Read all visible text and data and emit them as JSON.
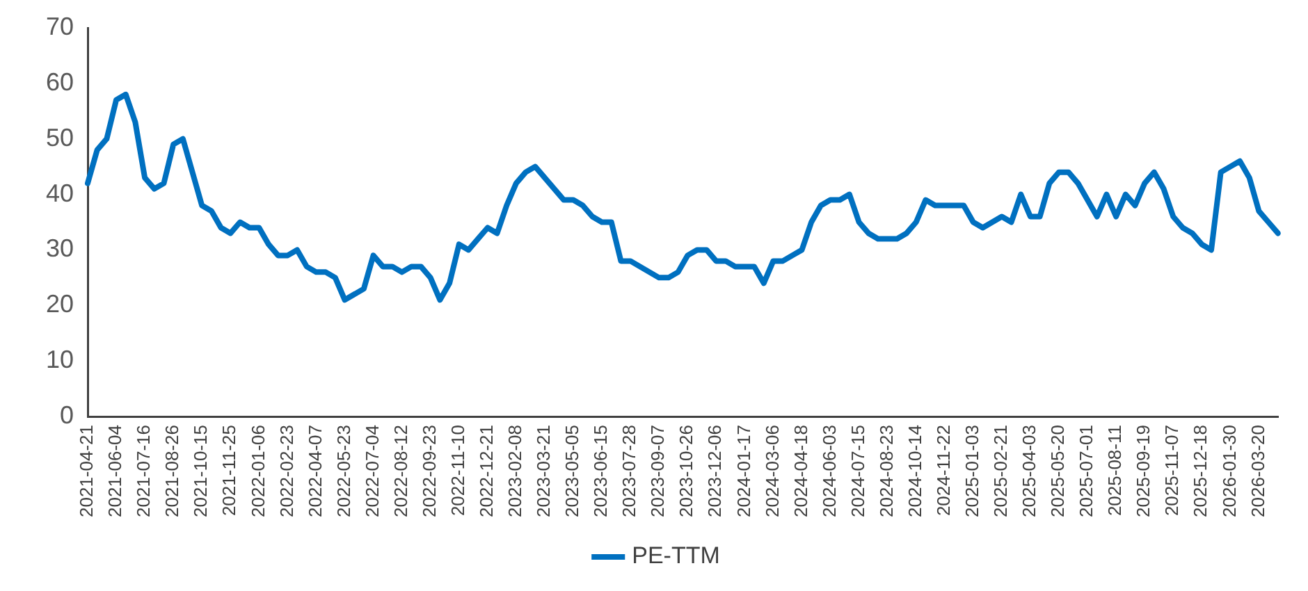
{
  "chart_data": {
    "type": "line",
    "categories": [
      "2021-04-21",
      null,
      null,
      "2021-06-04",
      null,
      null,
      "2021-07-16",
      null,
      null,
      "2021-08-26",
      null,
      null,
      "2021-10-15",
      null,
      null,
      "2021-11-25",
      null,
      null,
      "2022-01-06",
      null,
      null,
      "2022-02-23",
      null,
      null,
      "2022-04-07",
      null,
      null,
      "2022-05-23",
      null,
      null,
      "2022-07-04",
      null,
      null,
      "2022-08-12",
      null,
      null,
      "2022-09-23",
      null,
      null,
      "2022-11-10",
      null,
      null,
      "2022-12-21",
      null,
      null,
      "2023-02-08",
      null,
      null,
      "2023-03-21",
      null,
      null,
      "2023-05-05",
      null,
      null,
      "2023-06-15",
      null,
      null,
      "2023-07-28",
      null,
      null,
      "2023-09-07",
      null,
      null,
      "2023-10-26",
      null,
      null,
      "2023-12-06",
      null,
      null,
      "2024-01-17",
      null,
      null,
      "2024-03-06",
      null,
      null,
      "2024-04-18",
      null,
      null,
      "2024-06-03",
      null,
      null,
      "2024-07-15",
      null,
      null,
      "2024-08-23",
      null,
      null,
      "2024-10-14",
      null,
      null,
      "2024-11-22",
      null,
      null,
      "2025-01-03",
      null,
      null,
      "2025-02-21",
      null,
      null,
      "2025-04-03",
      null,
      null,
      "2025-05-20",
      null,
      null,
      "2025-07-01",
      null,
      null,
      "2025-08-11",
      null,
      null,
      "2025-09-19",
      null,
      null,
      "2025-11-07",
      null,
      null,
      "2025-12-18",
      null,
      null,
      "2026-01-30",
      null,
      null,
      "2026-03-20",
      null,
      null
    ],
    "series": [
      {
        "name": "PE-TTM",
        "color": "#0070c0",
        "values": [
          42,
          48,
          50,
          57,
          58,
          53,
          43,
          41,
          42,
          49,
          50,
          44,
          38,
          37,
          34,
          33,
          35,
          34,
          34,
          31,
          29,
          29,
          30,
          27,
          26,
          26,
          25,
          21,
          22,
          23,
          29,
          27,
          27,
          26,
          27,
          27,
          25,
          21,
          24,
          31,
          30,
          32,
          34,
          33,
          38,
          42,
          44,
          45,
          43,
          41,
          39,
          39,
          38,
          36,
          35,
          35,
          28,
          28,
          27,
          26,
          25,
          25,
          26,
          29,
          30,
          30,
          28,
          28,
          27,
          27,
          27,
          24,
          28,
          28,
          29,
          30,
          35,
          38,
          39,
          39,
          40,
          35,
          33,
          32,
          32,
          32,
          33,
          35,
          39,
          38,
          38,
          38,
          38,
          35,
          34,
          35,
          36,
          35,
          40,
          36,
          36,
          42,
          44,
          44,
          42,
          39,
          36,
          40,
          36,
          40,
          38,
          42,
          44,
          41,
          36,
          34,
          33,
          31,
          30,
          44,
          45,
          46,
          43,
          37,
          35,
          33
        ]
      }
    ],
    "ylim": [
      0,
      70
    ],
    "yticks": [
      0,
      10,
      20,
      30,
      40,
      50,
      60,
      70
    ],
    "grid": false,
    "legend": "bottom",
    "marker": "none",
    "line_style": "solid"
  }
}
